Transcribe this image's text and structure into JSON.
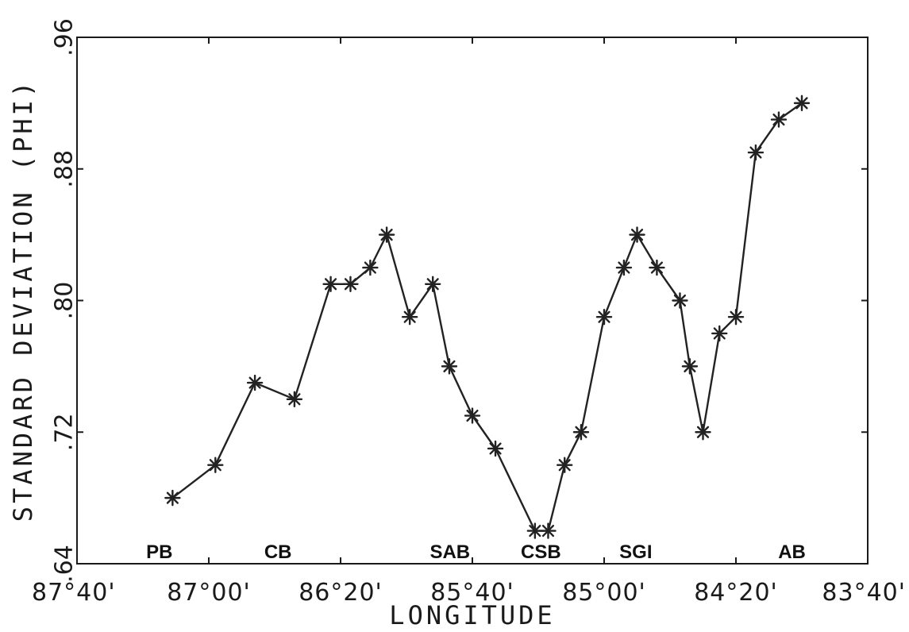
{
  "chart_data": {
    "type": "line",
    "title": "",
    "xlabel": "LONGITUDE",
    "ylabel": "STANDARD DEVIATION (PHI)",
    "x_axis_direction": "reversed",
    "xlim": [
      -87.6667,
      -83.6667
    ],
    "ylim": [
      0.64,
      0.96
    ],
    "grid": false,
    "legend": "none",
    "x_ticks": [
      {
        "value": -87.6667,
        "label": "87°40'"
      },
      {
        "value": -87.0,
        "label": "87°00'"
      },
      {
        "value": -86.3333,
        "label": "86°20'"
      },
      {
        "value": -85.6667,
        "label": "85°40'"
      },
      {
        "value": -85.0,
        "label": "85°00'"
      },
      {
        "value": -84.3333,
        "label": "84°20'"
      },
      {
        "value": -83.6667,
        "label": "83°40'"
      }
    ],
    "y_ticks": [
      {
        "value": 0.64,
        "label": ".64"
      },
      {
        "value": 0.72,
        "label": ".72"
      },
      {
        "value": 0.8,
        "label": ".80"
      },
      {
        "value": 0.88,
        "label": ".88"
      },
      {
        "value": 0.96,
        "label": ".96"
      }
    ],
    "region_labels": [
      {
        "text": "PB",
        "x": -87.25
      },
      {
        "text": "CB",
        "x": -86.65
      },
      {
        "text": "SAB",
        "x": -85.78
      },
      {
        "text": "CSB",
        "x": -85.32
      },
      {
        "text": "SGI",
        "x": -84.84
      },
      {
        "text": "AB",
        "x": -84.05
      }
    ],
    "series": [
      {
        "marker": "asterisk",
        "color": "#222222",
        "x": [
          -87.1833,
          -86.9667,
          -86.7667,
          -86.5667,
          -86.3833,
          -86.2833,
          -86.1833,
          -86.1,
          -85.9833,
          -85.8667,
          -85.7833,
          -85.6667,
          -85.55,
          -85.35,
          -85.2833,
          -85.2,
          -85.1167,
          -85.0,
          -84.9,
          -84.8333,
          -84.7333,
          -84.6167,
          -84.5667,
          -84.5,
          -84.4167,
          -84.3333,
          -84.2333,
          -84.1167,
          -84.0
        ],
        "y": [
          0.68,
          0.7,
          0.75,
          0.74,
          0.81,
          0.81,
          0.82,
          0.84,
          0.79,
          0.81,
          0.76,
          0.73,
          0.71,
          0.66,
          0.66,
          0.7,
          0.72,
          0.79,
          0.82,
          0.84,
          0.82,
          0.8,
          0.76,
          0.72,
          0.78,
          0.79,
          0.89,
          0.91,
          0.92
        ]
      }
    ]
  }
}
